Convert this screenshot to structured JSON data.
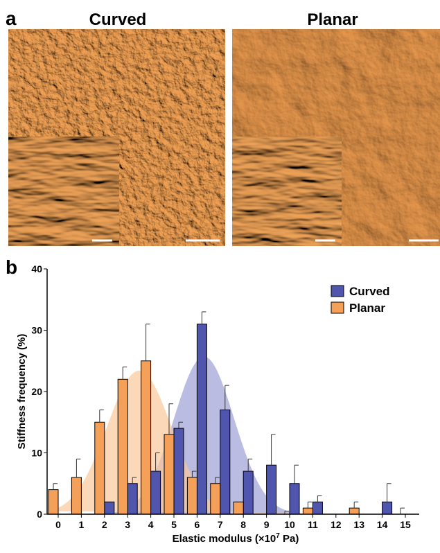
{
  "panel_a": {
    "label": "a",
    "left_title": "Curved",
    "right_title": "Planar"
  },
  "chart_data": {
    "type": "bar",
    "panel_label": "b",
    "ylabel": "Stiffness frequency (%)",
    "xlabel": {
      "before": "Elastic modulus (×10",
      "sup": "7",
      "after": " Pa)"
    },
    "categories": [
      "0",
      "1",
      "2",
      "3",
      "4",
      "5",
      "6",
      "7",
      "8",
      "9",
      "10",
      "11",
      "12",
      "13",
      "14",
      "15"
    ],
    "ylim": [
      0,
      40
    ],
    "yticks": [
      0,
      10,
      20,
      30,
      40
    ],
    "legend": "upper right",
    "series": [
      {
        "name": "Curved",
        "color": "#5055ae",
        "fit_color": "#9c9fd4",
        "values": [
          0,
          0,
          2,
          5,
          7,
          14,
          31,
          17,
          7,
          8,
          5,
          2,
          0,
          0,
          2,
          0
        ],
        "errors": [
          null,
          null,
          null,
          1,
          3,
          1,
          2,
          4,
          2,
          5,
          3,
          1,
          null,
          null,
          3,
          null
        ],
        "fit": {
          "mean": 6.3,
          "peak": 25.7,
          "sd": 1.3
        }
      },
      {
        "name": "Planar",
        "color": "#f5a058",
        "fit_color": "#f9c79a",
        "values": [
          4,
          6,
          15,
          22,
          25,
          13,
          6,
          5,
          2,
          0,
          0,
          1,
          0,
          1,
          0,
          0
        ],
        "errors": [
          1,
          3,
          2,
          2,
          6,
          5,
          1,
          1,
          null,
          null,
          0.5,
          1,
          null,
          1,
          null,
          1
        ],
        "fit": {
          "mean": 3.5,
          "peak": 23.4,
          "sd": 1.4
        }
      }
    ]
  }
}
